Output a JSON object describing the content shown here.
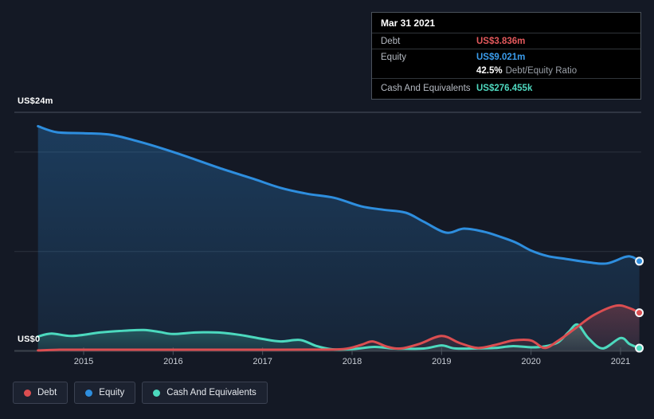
{
  "axis": {
    "y_top": "US$24m",
    "y_zero": "US$0",
    "years": [
      "2015",
      "2016",
      "2017",
      "2018",
      "2019",
      "2020",
      "2021"
    ]
  },
  "tooltip": {
    "date": "Mar 31 2021",
    "debt_label": "Debt",
    "debt_value": "US$3.836m",
    "equity_label": "Equity",
    "equity_value": "US$9.021m",
    "ratio_value": "42.5%",
    "ratio_label": "Debt/Equity Ratio",
    "cash_label": "Cash And Equivalents",
    "cash_value": "US$276.455k"
  },
  "legend": {
    "items": [
      {
        "label": "Debt",
        "color": "#DB4E51"
      },
      {
        "label": "Equity",
        "color": "#2E8EDE"
      },
      {
        "label": "Cash And Equivalents",
        "color": "#4CD9BE"
      }
    ]
  },
  "colors": {
    "background": "#141925",
    "grid_top": "#4a5160",
    "grid_mid": "#2b323e",
    "baseline": "#3c434d",
    "tick": "#4d5560",
    "dot_ring": "#f2f5f8"
  },
  "chart_data": {
    "type": "area",
    "title": "Debt to Equity History and Analysis",
    "unit": "US$ millions",
    "x_range": [
      2014.49,
      2021.25
    ],
    "x_ticks": [
      2015,
      2016,
      2017,
      2018,
      2019,
      2020,
      2021
    ],
    "y_max_label_value": 24,
    "gridline_values": [
      10,
      20
    ],
    "ylim": [
      0,
      24
    ],
    "legend_position": "bottom-left",
    "series": [
      {
        "name": "Equity",
        "color": "#2E8EDE",
        "points": [
          [
            2014.49,
            22.6
          ],
          [
            2014.7,
            22.0
          ],
          [
            2015.0,
            21.9
          ],
          [
            2015.3,
            21.75
          ],
          [
            2015.6,
            21.1
          ],
          [
            2015.9,
            20.3
          ],
          [
            2016.2,
            19.4
          ],
          [
            2016.55,
            18.3
          ],
          [
            2016.9,
            17.3
          ],
          [
            2017.2,
            16.4
          ],
          [
            2017.5,
            15.8
          ],
          [
            2017.8,
            15.4
          ],
          [
            2018.1,
            14.55
          ],
          [
            2018.35,
            14.2
          ],
          [
            2018.6,
            13.9
          ],
          [
            2018.8,
            13.0
          ],
          [
            2019.05,
            11.9
          ],
          [
            2019.25,
            12.3
          ],
          [
            2019.47,
            12.0
          ],
          [
            2019.65,
            11.5
          ],
          [
            2019.83,
            10.9
          ],
          [
            2020.0,
            10.1
          ],
          [
            2020.18,
            9.55
          ],
          [
            2020.35,
            9.3
          ],
          [
            2020.65,
            8.9
          ],
          [
            2020.85,
            8.8
          ],
          [
            2021.05,
            9.45
          ],
          [
            2021.13,
            9.45
          ],
          [
            2021.21,
            9.021
          ]
        ],
        "end_value": 9.021
      },
      {
        "name": "Cash And Equivalents",
        "color": "#4CD9BE",
        "points": [
          [
            2014.49,
            1.45
          ],
          [
            2014.64,
            1.75
          ],
          [
            2014.87,
            1.5
          ],
          [
            2015.18,
            1.85
          ],
          [
            2015.4,
            2.0
          ],
          [
            2015.67,
            2.1
          ],
          [
            2015.85,
            1.9
          ],
          [
            2016.0,
            1.7
          ],
          [
            2016.25,
            1.85
          ],
          [
            2016.5,
            1.85
          ],
          [
            2016.75,
            1.6
          ],
          [
            2017.0,
            1.2
          ],
          [
            2017.2,
            0.95
          ],
          [
            2017.42,
            1.1
          ],
          [
            2017.6,
            0.5
          ],
          [
            2017.78,
            0.16
          ],
          [
            2018.0,
            0.18
          ],
          [
            2018.25,
            0.4
          ],
          [
            2018.47,
            0.24
          ],
          [
            2018.8,
            0.24
          ],
          [
            2019.0,
            0.55
          ],
          [
            2019.15,
            0.25
          ],
          [
            2019.4,
            0.25
          ],
          [
            2019.6,
            0.3
          ],
          [
            2019.8,
            0.48
          ],
          [
            2020.0,
            0.36
          ],
          [
            2020.15,
            0.45
          ],
          [
            2020.3,
            0.85
          ],
          [
            2020.42,
            1.9
          ],
          [
            2020.52,
            2.65
          ],
          [
            2020.64,
            1.3
          ],
          [
            2020.8,
            0.25
          ],
          [
            2021.0,
            1.3
          ],
          [
            2021.1,
            0.7
          ],
          [
            2021.21,
            0.276455
          ]
        ],
        "end_value": 0.276455
      },
      {
        "name": "Debt",
        "color": "#DB4E51",
        "points": [
          [
            2014.49,
            0.03
          ],
          [
            2014.73,
            0.12
          ],
          [
            2015.0,
            0.12
          ],
          [
            2015.5,
            0.12
          ],
          [
            2016.0,
            0.12
          ],
          [
            2016.5,
            0.12
          ],
          [
            2017.0,
            0.12
          ],
          [
            2017.5,
            0.13
          ],
          [
            2017.9,
            0.18
          ],
          [
            2018.1,
            0.6
          ],
          [
            2018.23,
            0.95
          ],
          [
            2018.4,
            0.4
          ],
          [
            2018.55,
            0.25
          ],
          [
            2018.75,
            0.7
          ],
          [
            2019.0,
            1.5
          ],
          [
            2019.2,
            0.8
          ],
          [
            2019.4,
            0.3
          ],
          [
            2019.6,
            0.6
          ],
          [
            2019.8,
            1.05
          ],
          [
            2020.0,
            1.05
          ],
          [
            2020.15,
            0.3
          ],
          [
            2020.3,
            1.0
          ],
          [
            2020.5,
            2.3
          ],
          [
            2020.7,
            3.6
          ],
          [
            2020.95,
            4.55
          ],
          [
            2021.1,
            4.3
          ],
          [
            2021.21,
            3.836
          ]
        ],
        "end_value": 3.836
      }
    ]
  }
}
